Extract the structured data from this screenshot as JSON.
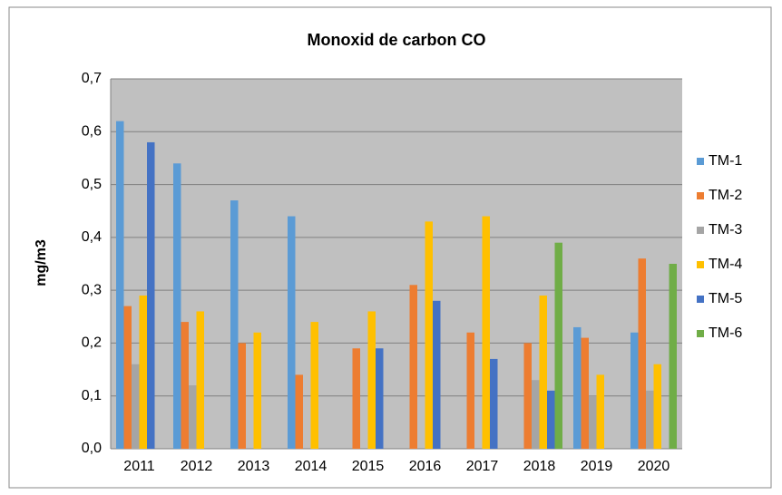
{
  "chart_data": {
    "type": "bar",
    "title": "Monoxid de carbon CO",
    "y_label": "mg/m3",
    "categories": [
      "2011",
      "2012",
      "2013",
      "2014",
      "2015",
      "2016",
      "2017",
      "2018",
      "2019",
      "2020"
    ],
    "series": [
      {
        "name": "TM-1",
        "color": "#5b9bd5",
        "values": [
          0.62,
          0.54,
          0.47,
          0.44,
          null,
          null,
          null,
          null,
          0.23,
          0.22
        ]
      },
      {
        "name": "TM-2",
        "color": "#ed7d31",
        "values": [
          0.27,
          0.24,
          0.2,
          0.14,
          0.19,
          0.31,
          0.22,
          0.2,
          0.21,
          0.36
        ]
      },
      {
        "name": "TM-3",
        "color": "#a5a5a5",
        "values": [
          0.16,
          0.12,
          null,
          null,
          null,
          null,
          null,
          0.13,
          0.1,
          0.11
        ]
      },
      {
        "name": "TM-4",
        "color": "#ffc000",
        "values": [
          0.29,
          0.26,
          0.22,
          0.24,
          0.26,
          0.43,
          0.44,
          0.29,
          0.14,
          0.16
        ]
      },
      {
        "name": "TM-5",
        "color": "#4472c4",
        "values": [
          0.58,
          null,
          null,
          null,
          0.19,
          0.28,
          0.17,
          0.11,
          null,
          null
        ]
      },
      {
        "name": "TM-6",
        "color": "#70ad47",
        "values": [
          null,
          null,
          null,
          null,
          null,
          null,
          null,
          0.39,
          null,
          0.35
        ]
      }
    ],
    "ylim": [
      0,
      0.7
    ],
    "yticks": [
      {
        "value": 0,
        "label": "0,0"
      },
      {
        "value": 0.1,
        "label": "0,1"
      },
      {
        "value": 0.2,
        "label": "0,2"
      },
      {
        "value": 0.3,
        "label": "0,3"
      },
      {
        "value": 0.4,
        "label": "0,4"
      },
      {
        "value": 0.5,
        "label": "0,5"
      },
      {
        "value": 0.6,
        "label": "0,6"
      },
      {
        "value": 0.7,
        "label": "0,7"
      }
    ],
    "grid": true,
    "legend": "right"
  }
}
